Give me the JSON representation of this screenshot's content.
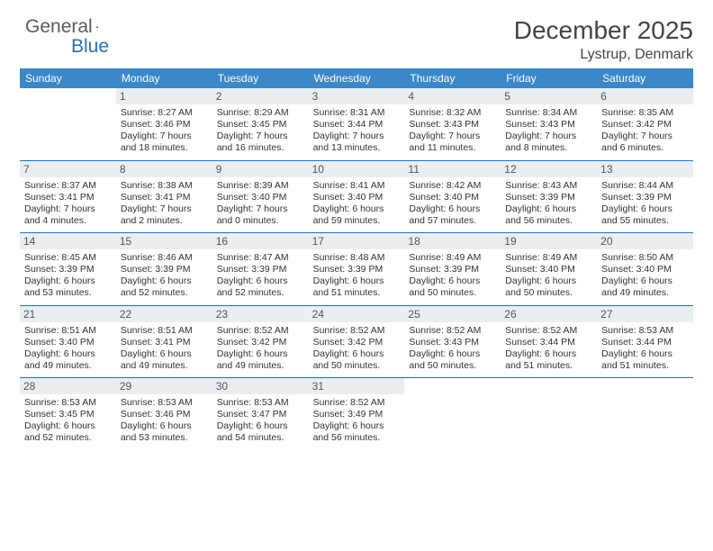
{
  "logo": {
    "word1": "General",
    "word2": "Blue"
  },
  "title": "December 2025",
  "location": "Lystrup, Denmark",
  "colors": {
    "header_bg": "#3b87c8",
    "header_text": "#ffffff",
    "rule": "#2c6fb0",
    "daynum_bg": "#e9eef3",
    "daynum_text": "#555555",
    "body_text": "#333333",
    "logo_gray": "#5a5a5a",
    "logo_blue": "#2c6fb0",
    "page_bg": "#ffffff"
  },
  "dow": [
    "Sunday",
    "Monday",
    "Tuesday",
    "Wednesday",
    "Thursday",
    "Friday",
    "Saturday"
  ],
  "weeks": [
    [
      null,
      {
        "n": "1",
        "sr": "8:27 AM",
        "ss": "3:46 PM",
        "dl": "7 hours and 18 minutes."
      },
      {
        "n": "2",
        "sr": "8:29 AM",
        "ss": "3:45 PM",
        "dl": "7 hours and 16 minutes."
      },
      {
        "n": "3",
        "sr": "8:31 AM",
        "ss": "3:44 PM",
        "dl": "7 hours and 13 minutes."
      },
      {
        "n": "4",
        "sr": "8:32 AM",
        "ss": "3:43 PM",
        "dl": "7 hours and 11 minutes."
      },
      {
        "n": "5",
        "sr": "8:34 AM",
        "ss": "3:43 PM",
        "dl": "7 hours and 8 minutes."
      },
      {
        "n": "6",
        "sr": "8:35 AM",
        "ss": "3:42 PM",
        "dl": "7 hours and 6 minutes."
      }
    ],
    [
      {
        "n": "7",
        "sr": "8:37 AM",
        "ss": "3:41 PM",
        "dl": "7 hours and 4 minutes."
      },
      {
        "n": "8",
        "sr": "8:38 AM",
        "ss": "3:41 PM",
        "dl": "7 hours and 2 minutes."
      },
      {
        "n": "9",
        "sr": "8:39 AM",
        "ss": "3:40 PM",
        "dl": "7 hours and 0 minutes."
      },
      {
        "n": "10",
        "sr": "8:41 AM",
        "ss": "3:40 PM",
        "dl": "6 hours and 59 minutes."
      },
      {
        "n": "11",
        "sr": "8:42 AM",
        "ss": "3:40 PM",
        "dl": "6 hours and 57 minutes."
      },
      {
        "n": "12",
        "sr": "8:43 AM",
        "ss": "3:39 PM",
        "dl": "6 hours and 56 minutes."
      },
      {
        "n": "13",
        "sr": "8:44 AM",
        "ss": "3:39 PM",
        "dl": "6 hours and 55 minutes."
      }
    ],
    [
      {
        "n": "14",
        "sr": "8:45 AM",
        "ss": "3:39 PM",
        "dl": "6 hours and 53 minutes."
      },
      {
        "n": "15",
        "sr": "8:46 AM",
        "ss": "3:39 PM",
        "dl": "6 hours and 52 minutes."
      },
      {
        "n": "16",
        "sr": "8:47 AM",
        "ss": "3:39 PM",
        "dl": "6 hours and 52 minutes."
      },
      {
        "n": "17",
        "sr": "8:48 AM",
        "ss": "3:39 PM",
        "dl": "6 hours and 51 minutes."
      },
      {
        "n": "18",
        "sr": "8:49 AM",
        "ss": "3:39 PM",
        "dl": "6 hours and 50 minutes."
      },
      {
        "n": "19",
        "sr": "8:49 AM",
        "ss": "3:40 PM",
        "dl": "6 hours and 50 minutes."
      },
      {
        "n": "20",
        "sr": "8:50 AM",
        "ss": "3:40 PM",
        "dl": "6 hours and 49 minutes."
      }
    ],
    [
      {
        "n": "21",
        "sr": "8:51 AM",
        "ss": "3:40 PM",
        "dl": "6 hours and 49 minutes."
      },
      {
        "n": "22",
        "sr": "8:51 AM",
        "ss": "3:41 PM",
        "dl": "6 hours and 49 minutes."
      },
      {
        "n": "23",
        "sr": "8:52 AM",
        "ss": "3:42 PM",
        "dl": "6 hours and 49 minutes."
      },
      {
        "n": "24",
        "sr": "8:52 AM",
        "ss": "3:42 PM",
        "dl": "6 hours and 50 minutes."
      },
      {
        "n": "25",
        "sr": "8:52 AM",
        "ss": "3:43 PM",
        "dl": "6 hours and 50 minutes."
      },
      {
        "n": "26",
        "sr": "8:52 AM",
        "ss": "3:44 PM",
        "dl": "6 hours and 51 minutes."
      },
      {
        "n": "27",
        "sr": "8:53 AM",
        "ss": "3:44 PM",
        "dl": "6 hours and 51 minutes."
      }
    ],
    [
      {
        "n": "28",
        "sr": "8:53 AM",
        "ss": "3:45 PM",
        "dl": "6 hours and 52 minutes."
      },
      {
        "n": "29",
        "sr": "8:53 AM",
        "ss": "3:46 PM",
        "dl": "6 hours and 53 minutes."
      },
      {
        "n": "30",
        "sr": "8:53 AM",
        "ss": "3:47 PM",
        "dl": "6 hours and 54 minutes."
      },
      {
        "n": "31",
        "sr": "8:52 AM",
        "ss": "3:49 PM",
        "dl": "6 hours and 56 minutes."
      },
      null,
      null,
      null
    ]
  ],
  "labels": {
    "sunrise": "Sunrise: ",
    "sunset": "Sunset: ",
    "daylight": "Daylight: "
  }
}
